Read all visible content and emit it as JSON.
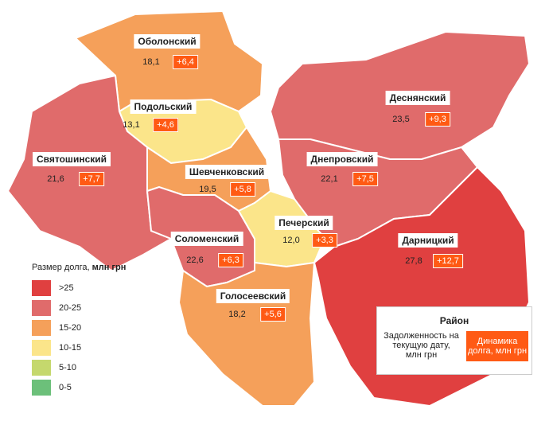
{
  "districts": [
    {
      "name": "Оболонский",
      "debt": "18,1",
      "change": "+6,4",
      "color": "#f5a05a"
    },
    {
      "name": "Подольский",
      "debt": "13,1",
      "change": "+4,6",
      "color": "#fbe58a"
    },
    {
      "name": "Святошинский",
      "debt": "21,6",
      "change": "+7,7",
      "color": "#e06b6b"
    },
    {
      "name": "Шевченковский",
      "debt": "19,5",
      "change": "+5,8",
      "color": "#f5a05a"
    },
    {
      "name": "Соломенский",
      "debt": "22,6",
      "change": "+6,3",
      "color": "#e06b6b"
    },
    {
      "name": "Печерский",
      "debt": "12,0",
      "change": "+3,3",
      "color": "#fbe58a"
    },
    {
      "name": "Голосеевский",
      "debt": "18,2",
      "change": "+5,6",
      "color": "#f5a05a"
    },
    {
      "name": "Деснянский",
      "debt": "23,5",
      "change": "+9,3",
      "color": "#e06b6b"
    },
    {
      "name": "Днепровский",
      "debt": "22,1",
      "change": "+7,5",
      "color": "#e06b6b"
    },
    {
      "name": "Дарницкий",
      "debt": "27,8",
      "change": "+12,7",
      "color": "#e04040"
    }
  ],
  "legend": {
    "title": "Размер долга, ",
    "title_unit": "млн грн",
    "items": [
      {
        "label": ">25",
        "color": "#e04040"
      },
      {
        "label": "20-25",
        "color": "#e06b6b"
      },
      {
        "label": "15-20",
        "color": "#f5a05a"
      },
      {
        "label": "10-15",
        "color": "#fbe58a"
      },
      {
        "label": "5-10",
        "color": "#c5d86d"
      },
      {
        "label": "0-5",
        "color": "#6cc07a"
      }
    ]
  },
  "key": {
    "title": "Район",
    "debt": "Задолженность на текущую дату, млн грн",
    "change": "Динамика долга, млн грн",
    "change_color": "#ff5a14"
  }
}
